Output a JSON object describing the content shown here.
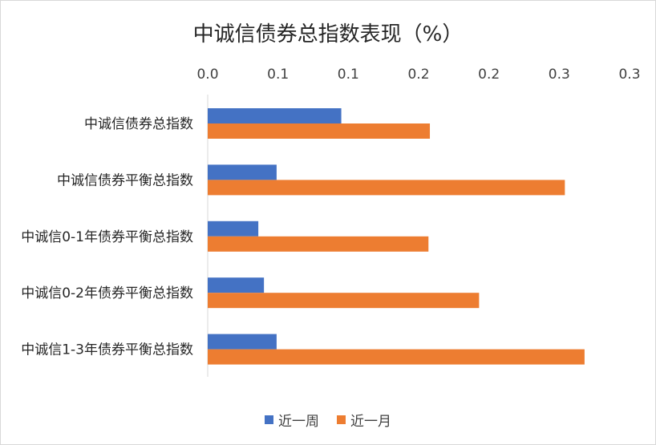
{
  "chart_data": {
    "type": "bar",
    "orientation": "horizontal",
    "title": "中诚信债券总指数表现（%）",
    "xlabel": "",
    "ylabel": "",
    "xlim": [
      0,
      0.3
    ],
    "x_axis_position": "top",
    "x_ticks": [
      0.0,
      0.05,
      0.1,
      0.15,
      0.2,
      0.25,
      0.3
    ],
    "x_tick_labels": [
      "0.0",
      "0.1",
      "0.1",
      "0.2",
      "0.2",
      "0.3",
      "0.3"
    ],
    "grid": false,
    "legend_position": "bottom",
    "categories": [
      "中诚信债券总指数",
      "中诚信债券平衡总指数",
      "中诚信0-1年债券平衡总指数",
      "中诚信0-2年债券平衡总指数",
      "中诚信1-3年债券平衡总指数"
    ],
    "series": [
      {
        "name": "近一周",
        "color": "#4472C4",
        "values": [
          0.095,
          0.049,
          0.036,
          0.04,
          0.049
        ]
      },
      {
        "name": "近一月",
        "color": "#ED7D31",
        "values": [
          0.158,
          0.254,
          0.157,
          0.193,
          0.268
        ]
      }
    ]
  }
}
